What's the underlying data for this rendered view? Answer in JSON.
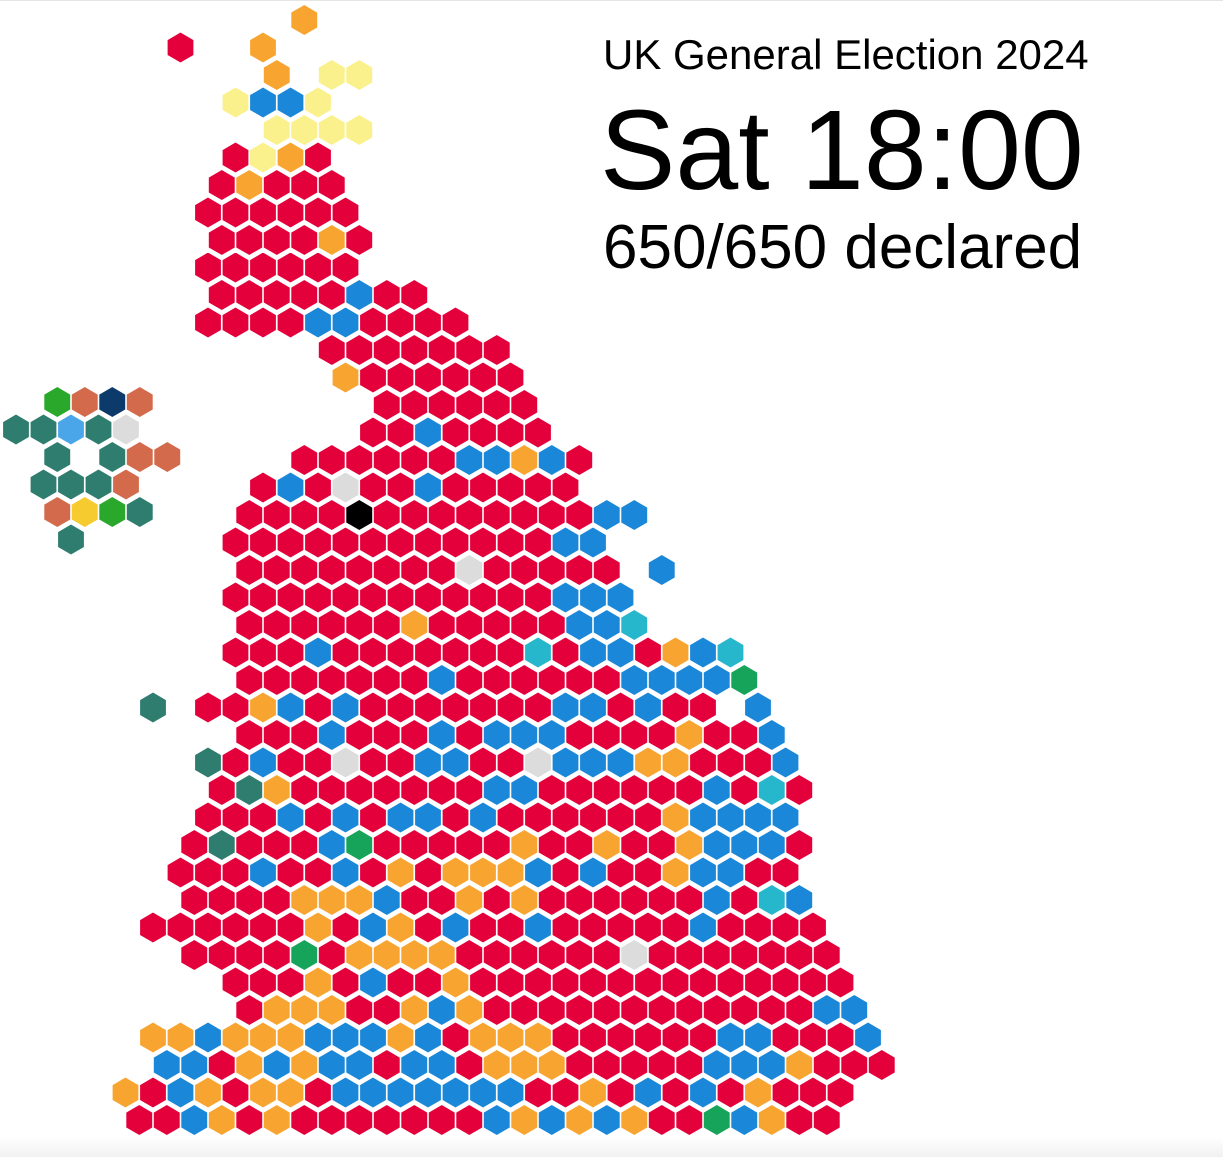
{
  "header": {
    "title": "UK General Election 2024",
    "time": "Sat 18:00",
    "declared": "650/650 declared"
  },
  "map": {
    "party_colors": {
      "lab": "#e4003b",
      "con": "#1b87d8",
      "ld": "#f7a530",
      "snp": "#fbf18c",
      "reform": "#27b7cc",
      "green": "#15a45a",
      "pc": "#2e7d6f",
      "sf": "#326760",
      "dup": "#d46a4c",
      "uup": "#4ba6e9",
      "sdlp": "#2aa82c",
      "alliance": "#f6cb2f",
      "tuv": "#0c3a6a",
      "ind": "#dcdcdc",
      "speaker": "#000000"
    }
  }
}
